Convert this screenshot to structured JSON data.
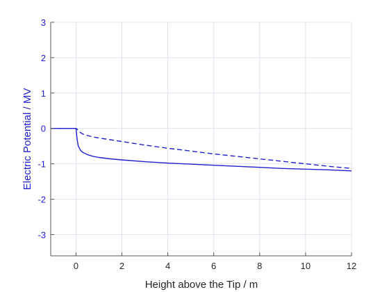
{
  "chart_data": {
    "type": "line",
    "title": "",
    "xlabel": "Height above the Tip / m",
    "ylabel": "Electric Potential / MV",
    "xlim": [
      -1.1,
      12
    ],
    "ylim": [
      -3.6,
      3
    ],
    "xticks": [
      0,
      2,
      4,
      6,
      8,
      10,
      12
    ],
    "yticks": [
      -3,
      -2,
      -1,
      0,
      1,
      2,
      3
    ],
    "grid": true,
    "legend": "none",
    "colors": {
      "series": "#1f1fd0",
      "ylabel": "#1f1fd0",
      "xlabel": "#262626",
      "grid": "#dfe2ee",
      "axis": "#555555"
    },
    "series": [
      {
        "style": "solid",
        "x": [
          -1.1,
          0.0,
          0.05,
          0.1,
          0.2,
          0.3,
          0.5,
          0.75,
          1.0,
          1.5,
          2,
          3,
          4,
          5,
          6,
          7,
          8,
          9,
          10,
          11,
          12
        ],
        "y": [
          0,
          0,
          -0.3,
          -0.5,
          -0.62,
          -0.68,
          -0.74,
          -0.79,
          -0.82,
          -0.86,
          -0.89,
          -0.94,
          -0.98,
          -1.01,
          -1.04,
          -1.07,
          -1.1,
          -1.13,
          -1.15,
          -1.17,
          -1.2
        ]
      },
      {
        "style": "dashed",
        "x": [
          -1.1,
          0.0,
          0.05,
          0.1,
          0.2,
          0.3,
          0.5,
          0.75,
          1.0,
          1.5,
          2,
          3,
          4,
          5,
          6,
          7,
          8,
          9,
          10,
          11,
          12
        ],
        "y": [
          0,
          0,
          -0.02,
          -0.06,
          -0.12,
          -0.16,
          -0.2,
          -0.24,
          -0.27,
          -0.32,
          -0.37,
          -0.47,
          -0.56,
          -0.64,
          -0.72,
          -0.79,
          -0.86,
          -0.93,
          -1.0,
          -1.07,
          -1.13
        ]
      }
    ]
  }
}
